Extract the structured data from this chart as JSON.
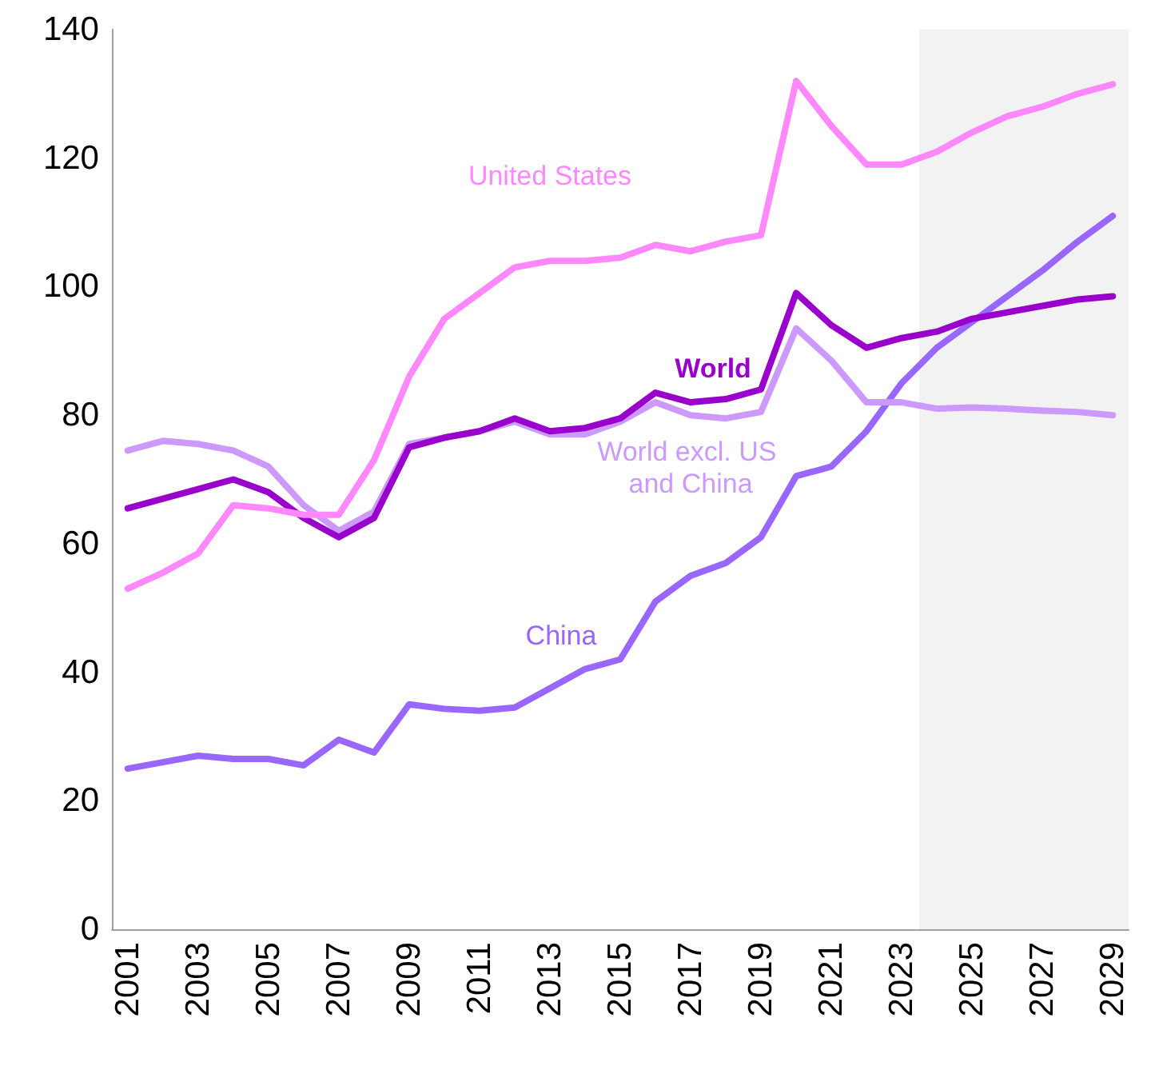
{
  "chart_data": {
    "type": "line",
    "x": [
      2001,
      2002,
      2003,
      2004,
      2005,
      2006,
      2007,
      2008,
      2009,
      2010,
      2011,
      2012,
      2013,
      2014,
      2015,
      2016,
      2017,
      2018,
      2019,
      2020,
      2021,
      2022,
      2023,
      2024,
      2025,
      2026,
      2027,
      2028,
      2029
    ],
    "series": [
      {
        "name": "United States",
        "color": "#ff88ff",
        "values": [
          53,
          55.5,
          58.5,
          66,
          65.5,
          64.5,
          64.5,
          73,
          86,
          95,
          99,
          103,
          104,
          104,
          104.5,
          106.5,
          105.5,
          107,
          108,
          132,
          125,
          119,
          119,
          121,
          124,
          126.5,
          128,
          130,
          131.5
        ]
      },
      {
        "name": "World",
        "color": "#9900cc",
        "values": [
          65.5,
          67,
          68.5,
          70,
          68,
          64,
          61,
          64,
          75,
          76.5,
          77.5,
          79.5,
          77.5,
          78,
          79.5,
          83.5,
          82,
          82.5,
          84,
          99,
          94,
          90.5,
          92,
          93,
          95,
          96,
          97,
          98,
          98.5
        ]
      },
      {
        "name": "World excl. US and China",
        "color": "#cc99ff",
        "values": [
          74.5,
          76,
          75.5,
          74.5,
          72,
          66,
          62,
          65,
          75.5,
          76.5,
          77.5,
          79,
          77,
          77,
          79,
          82,
          80,
          79.5,
          80.5,
          93.5,
          88.5,
          82,
          82,
          81,
          81.2,
          81,
          80.7,
          80.5,
          80
        ]
      },
      {
        "name": "China",
        "color": "#9966ff",
        "values": [
          25,
          26,
          27,
          26.5,
          26.5,
          25.5,
          29.5,
          27.5,
          35,
          34.3,
          34,
          34.5,
          37.5,
          40.5,
          42,
          51,
          55,
          57,
          61,
          70.5,
          72,
          77.5,
          85,
          90.5,
          94.5,
          98.5,
          102.5,
          107,
          111
        ]
      }
    ],
    "xlim": [
      2000.55,
      2029.45
    ],
    "xticks": [
      2001,
      2003,
      2005,
      2007,
      2009,
      2011,
      2013,
      2015,
      2017,
      2019,
      2021,
      2023,
      2025,
      2027,
      2029
    ],
    "ylim": [
      0,
      140
    ],
    "yticks": [
      0,
      20,
      40,
      60,
      80,
      100,
      120,
      140
    ],
    "bands": [
      {
        "axis": "x",
        "from": 2023.5,
        "to": 2029.45,
        "color": "#f2f2f2"
      }
    ],
    "grid": false,
    "legend": false,
    "marker": "none",
    "line_style": "solid"
  }
}
